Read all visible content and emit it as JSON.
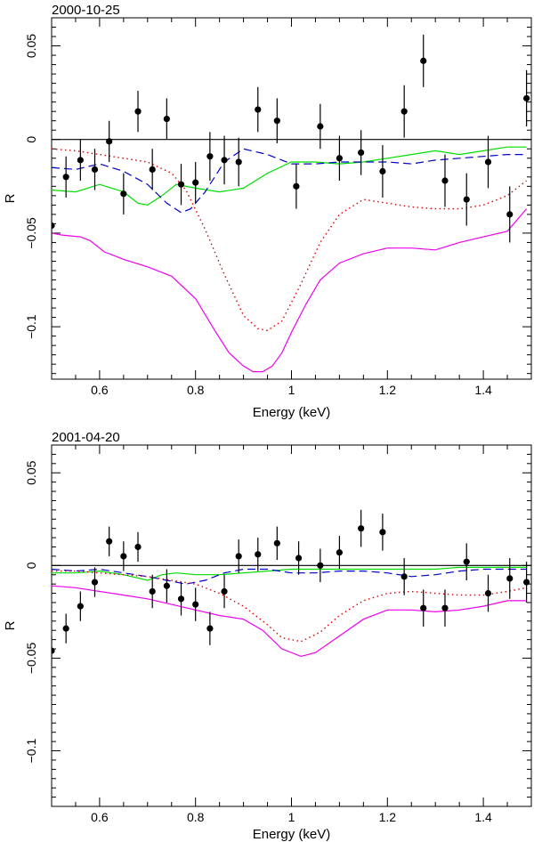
{
  "chart_data": [
    {
      "type": "scatter",
      "title": "2000-10-25",
      "xlabel": "Energy (keV)",
      "ylabel": "R",
      "xlim": [
        0.5,
        1.5
      ],
      "ylim": [
        -0.128,
        0.065
      ],
      "xticks": [
        0.6,
        0.8,
        1,
        1.2,
        1.4
      ],
      "xtick_labels": [
        "0.6",
        "0.8",
        "1",
        "1.2",
        "1.4"
      ],
      "yticks": [
        0.05,
        0,
        -0.05,
        -0.1
      ],
      "ytick_labels": [
        "0.05",
        "0",
        "−0.05",
        "−0.1"
      ],
      "points": [
        {
          "x": 0.5,
          "y": -0.046,
          "err": 0.011
        },
        {
          "x": 0.53,
          "y": -0.02,
          "err": 0.011
        },
        {
          "x": 0.56,
          "y": -0.011,
          "err": 0.011
        },
        {
          "x": 0.59,
          "y": -0.016,
          "err": 0.011
        },
        {
          "x": 0.62,
          "y": -0.001,
          "err": 0.011
        },
        {
          "x": 0.65,
          "y": -0.029,
          "err": 0.011
        },
        {
          "x": 0.68,
          "y": 0.015,
          "err": 0.011
        },
        {
          "x": 0.71,
          "y": -0.016,
          "err": 0.011
        },
        {
          "x": 0.74,
          "y": 0.011,
          "err": 0.011
        },
        {
          "x": 0.77,
          "y": -0.024,
          "err": 0.011
        },
        {
          "x": 0.8,
          "y": -0.023,
          "err": 0.011
        },
        {
          "x": 0.83,
          "y": -0.009,
          "err": 0.013
        },
        {
          "x": 0.86,
          "y": -0.011,
          "err": 0.013
        },
        {
          "x": 0.89,
          "y": -0.012,
          "err": 0.013
        },
        {
          "x": 0.93,
          "y": 0.016,
          "err": 0.012
        },
        {
          "x": 0.97,
          "y": 0.01,
          "err": 0.012
        },
        {
          "x": 1.01,
          "y": -0.025,
          "err": 0.012
        },
        {
          "x": 1.06,
          "y": 0.007,
          "err": 0.012
        },
        {
          "x": 1.1,
          "y": -0.01,
          "err": 0.012
        },
        {
          "x": 1.145,
          "y": -0.007,
          "err": 0.012
        },
        {
          "x": 1.19,
          "y": -0.017,
          "err": 0.014
        },
        {
          "x": 1.235,
          "y": 0.015,
          "err": 0.014
        },
        {
          "x": 1.275,
          "y": 0.042,
          "err": 0.014
        },
        {
          "x": 1.32,
          "y": -0.022,
          "err": 0.014
        },
        {
          "x": 1.365,
          "y": -0.032,
          "err": 0.014
        },
        {
          "x": 1.41,
          "y": -0.012,
          "err": 0.014
        },
        {
          "x": 1.455,
          "y": -0.04,
          "err": 0.015
        },
        {
          "x": 1.49,
          "y": 0.022,
          "err": 0.015
        }
      ],
      "series": [
        {
          "name": "zero",
          "style": "solid",
          "color": "#000000",
          "x": [
            0.5,
            1.5
          ],
          "y": [
            0.0,
            0.0
          ]
        },
        {
          "name": "green",
          "style": "solid",
          "color": "#00dd00",
          "x": [
            0.5,
            0.55,
            0.6,
            0.65,
            0.68,
            0.7,
            0.73,
            0.76,
            0.8,
            0.85,
            0.9,
            0.95,
            1.0,
            1.05,
            1.1,
            1.15,
            1.2,
            1.25,
            1.3,
            1.35,
            1.4,
            1.45,
            1.49
          ],
          "y": [
            -0.027,
            -0.028,
            -0.024,
            -0.028,
            -0.034,
            -0.035,
            -0.03,
            -0.024,
            -0.026,
            -0.028,
            -0.026,
            -0.018,
            -0.012,
            -0.012,
            -0.013,
            -0.012,
            -0.01,
            -0.008,
            -0.006,
            -0.008,
            -0.006,
            -0.004,
            -0.004
          ]
        },
        {
          "name": "blue-dashed",
          "style": "dashed",
          "color": "#0000cc",
          "x": [
            0.5,
            0.55,
            0.6,
            0.65,
            0.7,
            0.74,
            0.77,
            0.79,
            0.82,
            0.86,
            0.9,
            0.95,
            1.0,
            1.05,
            1.1,
            1.15,
            1.2,
            1.25,
            1.3,
            1.35,
            1.4,
            1.45,
            1.49
          ],
          "y": [
            -0.015,
            -0.016,
            -0.013,
            -0.017,
            -0.024,
            -0.034,
            -0.039,
            -0.037,
            -0.028,
            -0.012,
            -0.005,
            -0.008,
            -0.013,
            -0.013,
            -0.012,
            -0.012,
            -0.012,
            -0.013,
            -0.011,
            -0.01,
            -0.009,
            -0.008,
            -0.008
          ]
        },
        {
          "name": "red-dotted",
          "style": "dotted",
          "color": "#dd0000",
          "x": [
            0.5,
            0.55,
            0.6,
            0.65,
            0.7,
            0.75,
            0.78,
            0.82,
            0.86,
            0.9,
            0.93,
            0.95,
            0.98,
            1.02,
            1.06,
            1.1,
            1.15,
            1.2,
            1.25,
            1.3,
            1.35,
            1.4,
            1.45,
            1.49
          ],
          "y": [
            -0.005,
            -0.006,
            -0.008,
            -0.01,
            -0.012,
            -0.018,
            -0.027,
            -0.048,
            -0.072,
            -0.094,
            -0.101,
            -0.102,
            -0.097,
            -0.077,
            -0.055,
            -0.04,
            -0.032,
            -0.034,
            -0.036,
            -0.037,
            -0.037,
            -0.035,
            -0.03,
            -0.022
          ]
        },
        {
          "name": "magenta",
          "style": "solid",
          "color": "#ee00ee",
          "x": [
            0.5,
            0.52,
            0.56,
            0.58,
            0.61,
            0.65,
            0.7,
            0.75,
            0.8,
            0.84,
            0.87,
            0.9,
            0.92,
            0.94,
            0.96,
            0.98,
            1.0,
            1.03,
            1.06,
            1.1,
            1.15,
            1.2,
            1.25,
            1.3,
            1.35,
            1.4,
            1.45,
            1.49
          ],
          "y": [
            -0.05,
            -0.051,
            -0.052,
            -0.054,
            -0.06,
            -0.064,
            -0.068,
            -0.073,
            -0.085,
            -0.102,
            -0.114,
            -0.121,
            -0.124,
            -0.124,
            -0.121,
            -0.114,
            -0.103,
            -0.088,
            -0.075,
            -0.066,
            -0.061,
            -0.058,
            -0.058,
            -0.059,
            -0.055,
            -0.052,
            -0.049,
            -0.037
          ]
        }
      ]
    },
    {
      "type": "scatter",
      "title": "2001-04-20",
      "xlabel": "Energy (keV)",
      "ylabel": "R",
      "xlim": [
        0.5,
        1.5
      ],
      "ylim": [
        -0.13,
        0.065
      ],
      "xticks": [
        0.6,
        0.8,
        1,
        1.2,
        1.4
      ],
      "xtick_labels": [
        "0.6",
        "0.8",
        "1",
        "1.2",
        "1.4"
      ],
      "yticks": [
        0.05,
        0,
        -0.05,
        -0.1
      ],
      "ytick_labels": [
        "0.05",
        "0",
        "−0.05",
        "−0.1"
      ],
      "points": [
        {
          "x": 0.5,
          "y": -0.046,
          "err": 0.008
        },
        {
          "x": 0.53,
          "y": -0.034,
          "err": 0.008
        },
        {
          "x": 0.56,
          "y": -0.022,
          "err": 0.008
        },
        {
          "x": 0.59,
          "y": -0.009,
          "err": 0.008
        },
        {
          "x": 0.62,
          "y": 0.013,
          "err": 0.008
        },
        {
          "x": 0.65,
          "y": 0.005,
          "err": 0.008
        },
        {
          "x": 0.68,
          "y": 0.01,
          "err": 0.008
        },
        {
          "x": 0.71,
          "y": -0.014,
          "err": 0.009
        },
        {
          "x": 0.74,
          "y": -0.011,
          "err": 0.009
        },
        {
          "x": 0.77,
          "y": -0.018,
          "err": 0.009
        },
        {
          "x": 0.8,
          "y": -0.021,
          "err": 0.009
        },
        {
          "x": 0.83,
          "y": -0.034,
          "err": 0.009
        },
        {
          "x": 0.86,
          "y": -0.014,
          "err": 0.009
        },
        {
          "x": 0.89,
          "y": 0.005,
          "err": 0.009
        },
        {
          "x": 0.93,
          "y": 0.006,
          "err": 0.009
        },
        {
          "x": 0.97,
          "y": 0.012,
          "err": 0.009
        },
        {
          "x": 1.015,
          "y": 0.004,
          "err": 0.009
        },
        {
          "x": 1.06,
          "y": 0.0,
          "err": 0.009
        },
        {
          "x": 1.1,
          "y": 0.007,
          "err": 0.009
        },
        {
          "x": 1.145,
          "y": 0.02,
          "err": 0.01
        },
        {
          "x": 1.19,
          "y": 0.018,
          "err": 0.01
        },
        {
          "x": 1.235,
          "y": -0.006,
          "err": 0.01
        },
        {
          "x": 1.275,
          "y": -0.023,
          "err": 0.01
        },
        {
          "x": 1.32,
          "y": -0.023,
          "err": 0.01
        },
        {
          "x": 1.365,
          "y": 0.002,
          "err": 0.01
        },
        {
          "x": 1.41,
          "y": -0.015,
          "err": 0.01
        },
        {
          "x": 1.455,
          "y": -0.007,
          "err": 0.011
        },
        {
          "x": 1.49,
          "y": -0.009,
          "err": 0.011
        }
      ],
      "series": [
        {
          "name": "zero",
          "style": "solid",
          "color": "#000000",
          "x": [
            0.5,
            1.5
          ],
          "y": [
            0.0,
            0.0
          ]
        },
        {
          "name": "green",
          "style": "solid",
          "color": "#00dd00",
          "x": [
            0.5,
            0.55,
            0.6,
            0.65,
            0.7,
            0.73,
            0.76,
            0.8,
            0.85,
            0.9,
            0.95,
            1.0,
            1.05,
            1.1,
            1.15,
            1.2,
            1.25,
            1.3,
            1.35,
            1.4,
            1.45,
            1.49
          ],
          "y": [
            -0.004,
            -0.004,
            -0.003,
            -0.005,
            -0.008,
            -0.005,
            -0.004,
            -0.005,
            -0.005,
            -0.004,
            -0.003,
            -0.002,
            -0.002,
            -0.002,
            -0.002,
            -0.002,
            -0.002,
            -0.002,
            -0.001,
            -0.001,
            -0.001,
            -0.001
          ]
        },
        {
          "name": "blue-dashed",
          "style": "dashed",
          "color": "#0000cc",
          "x": [
            0.5,
            0.55,
            0.6,
            0.65,
            0.7,
            0.74,
            0.78,
            0.82,
            0.86,
            0.9,
            0.95,
            1.0,
            1.05,
            1.1,
            1.15,
            1.2,
            1.25,
            1.3,
            1.35,
            1.4,
            1.45,
            1.49
          ],
          "y": [
            -0.002,
            -0.003,
            -0.002,
            -0.004,
            -0.006,
            -0.008,
            -0.01,
            -0.008,
            -0.004,
            -0.002,
            -0.002,
            -0.004,
            -0.004,
            -0.003,
            -0.003,
            -0.004,
            -0.006,
            -0.005,
            -0.003,
            -0.002,
            -0.002,
            -0.002
          ]
        },
        {
          "name": "red-dotted",
          "style": "dotted",
          "color": "#dd0000",
          "x": [
            0.5,
            0.55,
            0.6,
            0.65,
            0.7,
            0.75,
            0.8,
            0.85,
            0.9,
            0.95,
            0.98,
            1.02,
            1.06,
            1.1,
            1.15,
            1.2,
            1.25,
            1.3,
            1.35,
            1.4,
            1.45,
            1.49
          ],
          "y": [
            -0.003,
            -0.003,
            -0.004,
            -0.005,
            -0.006,
            -0.008,
            -0.01,
            -0.015,
            -0.022,
            -0.032,
            -0.039,
            -0.041,
            -0.036,
            -0.027,
            -0.019,
            -0.015,
            -0.014,
            -0.015,
            -0.016,
            -0.016,
            -0.014,
            -0.012
          ]
        },
        {
          "name": "magenta",
          "style": "solid",
          "color": "#ee00ee",
          "x": [
            0.5,
            0.55,
            0.6,
            0.65,
            0.7,
            0.75,
            0.8,
            0.85,
            0.9,
            0.94,
            0.98,
            1.02,
            1.05,
            1.1,
            1.15,
            1.2,
            1.25,
            1.3,
            1.35,
            1.4,
            1.45,
            1.49
          ],
          "y": [
            -0.011,
            -0.012,
            -0.014,
            -0.016,
            -0.018,
            -0.021,
            -0.024,
            -0.027,
            -0.029,
            -0.035,
            -0.045,
            -0.049,
            -0.047,
            -0.038,
            -0.029,
            -0.024,
            -0.024,
            -0.025,
            -0.024,
            -0.022,
            -0.019,
            -0.019
          ]
        }
      ]
    }
  ]
}
